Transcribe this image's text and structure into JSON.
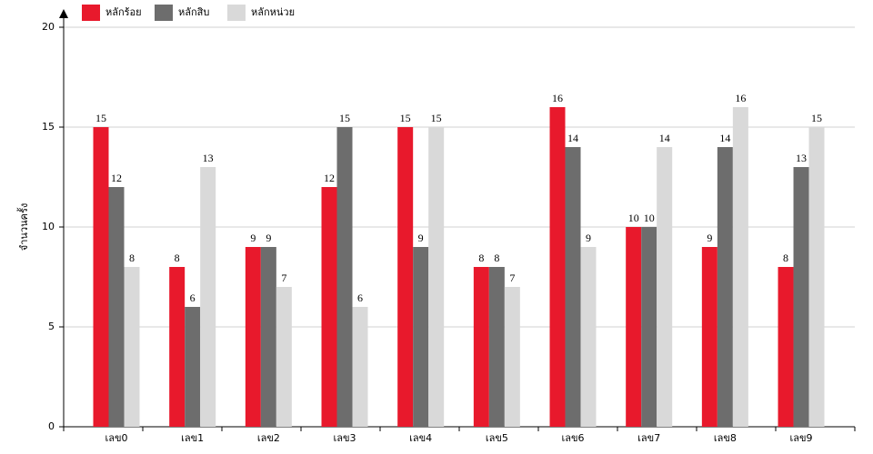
{
  "chart_data": {
    "type": "bar",
    "y_label": "จำนวนครั้ง",
    "categories": [
      "เลข0",
      "เลข1",
      "เลข2",
      "เลข3",
      "เลข4",
      "เลข5",
      "เลข6",
      "เลข7",
      "เลข8",
      "เลข9"
    ],
    "series": [
      {
        "name": "หลักร้อย",
        "color": "#e8192c",
        "values": [
          15,
          8,
          9,
          12,
          15,
          8,
          16,
          10,
          9,
          8
        ]
      },
      {
        "name": "หลักสิบ",
        "color": "#6d6d6d",
        "values": [
          12,
          6,
          9,
          15,
          9,
          8,
          14,
          10,
          14,
          13
        ]
      },
      {
        "name": "หลักหน่วย",
        "color": "#d9d9d9",
        "values": [
          8,
          13,
          7,
          6,
          15,
          7,
          9,
          14,
          16,
          15
        ]
      }
    ],
    "ylim": [
      0,
      20
    ],
    "yticks": [
      0,
      5,
      10,
      15,
      20
    ],
    "grid": true,
    "legend": "top-left"
  }
}
